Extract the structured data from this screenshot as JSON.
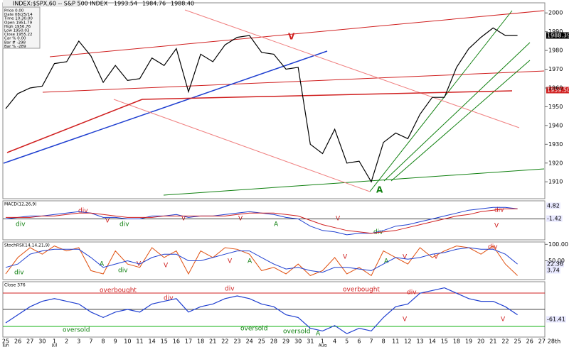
{
  "header": {
    "title": "INDEX:$SPX,60 -- S&P 500 INDEX",
    "quotes": [
      "1993.54",
      "1984.76",
      "1988.40"
    ]
  },
  "info": {
    "rows": [
      "Price 0.00",
      "Date 08/25/14",
      "Time 10:30:00",
      "Open 1951.79",
      "High 1956.76",
      "Low 1950.03",
      "Close 1955.22",
      "Car % 0.00",
      "Bar # -298",
      "Bar % -289"
    ]
  },
  "chart_data": [
    {
      "type": "line",
      "color": "#000000",
      "categories": [
        "25",
        "26",
        "27",
        "30",
        "1",
        "2",
        "3",
        "7",
        "8",
        "9",
        "10",
        "11",
        "14",
        "15",
        "16",
        "17",
        "18",
        "21",
        "22",
        "23",
        "24",
        "25",
        "28",
        "29",
        "30",
        "31",
        "1",
        "4",
        "5",
        "6",
        "7",
        "8",
        "11",
        "12",
        "13",
        "14",
        "15",
        "18",
        "19",
        "20",
        "21",
        "22",
        "25",
        "26",
        "27",
        "28th"
      ],
      "month_labels": [
        "Jun",
        "Jul",
        "Aug"
      ],
      "values": [
        1949,
        1957,
        1960,
        1961,
        1973,
        1974,
        1985,
        1977,
        1963,
        1972,
        1964,
        1965,
        1976,
        1972,
        1981,
        1958,
        1978,
        1974,
        1983,
        1987,
        1988,
        1979,
        1978,
        1970,
        1971,
        1930,
        1925,
        1938,
        1920,
        1921,
        1910,
        1931,
        1936,
        1933,
        1946,
        1955,
        1955,
        1971,
        1981,
        1987,
        1992,
        1988,
        1988,
        null,
        null,
        null
      ],
      "ylim": [
        1901,
        2005
      ],
      "yticks": [
        1910,
        1920,
        1930,
        1940,
        1950,
        1960,
        1970,
        1980,
        1990,
        2000
      ],
      "annotations": [
        "V",
        "A",
        "1988.39",
        "1959.50"
      ]
    },
    {
      "type": "macd",
      "title": "MACD(12,26,9)",
      "ylim": [
        -14,
        12
      ],
      "series": [
        {
          "color": "#1f3fd0",
          "values": [
            0,
            1,
            2,
            2,
            3,
            4,
            5,
            4,
            1,
            1,
            0,
            0,
            2,
            2,
            3,
            1,
            2,
            2,
            3,
            4,
            5,
            4,
            3,
            1,
            0,
            -5,
            -8,
            -9,
            -11,
            -10,
            -10,
            -8,
            -5,
            -4,
            -2,
            0,
            2,
            4,
            6,
            7,
            8,
            8,
            7,
            null,
            null,
            null
          ]
        },
        {
          "color": "#d02020",
          "values": [
            1,
            1,
            1,
            2,
            2,
            3,
            4,
            4,
            3,
            2,
            1,
            1,
            1,
            2,
            2,
            2,
            2,
            2,
            2,
            3,
            4,
            4,
            4,
            3,
            2,
            -1,
            -4,
            -6,
            -8,
            -9,
            -10,
            -9,
            -8,
            -6,
            -4,
            -2,
            0,
            2,
            3,
            5,
            6,
            7,
            7,
            null,
            null,
            null
          ]
        }
      ],
      "annotations": [
        "div",
        "div",
        "V",
        "div",
        "V",
        "V",
        "A",
        "V",
        "div",
        "V",
        "div",
        "4.82",
        "-1.42"
      ]
    },
    {
      "type": "stoch",
      "title": "StochRSI(14,14,21,9)",
      "ylim": [
        -5,
        105
      ],
      "yticks": [
        {
          "value": 100,
          "label": "100.00"
        },
        {
          "value": 50,
          "label": "50.00"
        }
      ],
      "series": [
        {
          "color": "#e05010",
          "values": [
            10,
            60,
            90,
            70,
            95,
            80,
            90,
            20,
            10,
            80,
            40,
            30,
            90,
            60,
            80,
            10,
            80,
            60,
            90,
            85,
            70,
            20,
            30,
            10,
            40,
            5,
            20,
            60,
            10,
            30,
            5,
            80,
            60,
            40,
            90,
            60,
            80,
            95,
            90,
            70,
            95,
            40,
            5,
            null,
            null,
            null
          ]
        },
        {
          "color": "#1f3fd0",
          "values": [
            30,
            40,
            70,
            80,
            85,
            85,
            85,
            60,
            30,
            40,
            50,
            40,
            60,
            70,
            70,
            50,
            50,
            60,
            70,
            80,
            80,
            60,
            40,
            25,
            30,
            20,
            15,
            30,
            30,
            25,
            20,
            40,
            60,
            55,
            60,
            70,
            75,
            85,
            90,
            85,
            85,
            70,
            40,
            null,
            null,
            null
          ]
        }
      ],
      "annotations": [
        "div",
        "A",
        "V",
        "div",
        "V",
        "V",
        "A",
        "V",
        "A",
        "V",
        "V",
        "div",
        "22.36",
        "3.74"
      ]
    },
    {
      "type": "osc",
      "title": "Close 376",
      "ylim": [
        -100,
        100
      ],
      "series": [
        {
          "color": "#1f3fd0",
          "values": [
            -50,
            -20,
            10,
            30,
            40,
            30,
            20,
            -10,
            -30,
            -10,
            0,
            -10,
            20,
            30,
            40,
            -10,
            10,
            20,
            40,
            50,
            40,
            20,
            10,
            -20,
            -30,
            -70,
            -80,
            -60,
            -90,
            -70,
            -80,
            -30,
            10,
            20,
            60,
            70,
            80,
            60,
            40,
            30,
            30,
            10,
            -20,
            null,
            null,
            null
          ]
        }
      ],
      "annotations": [
        "overbought",
        "overbought",
        "oversold",
        "oversold",
        "oversold",
        "div",
        "div",
        "div",
        "A",
        "V",
        "V",
        "-61.41"
      ]
    }
  ]
}
